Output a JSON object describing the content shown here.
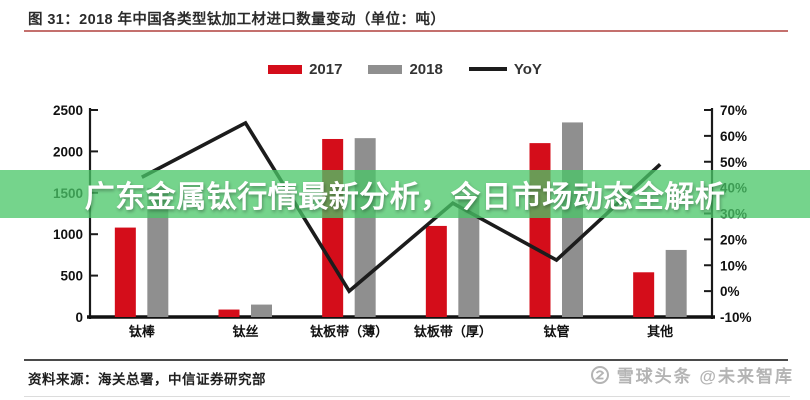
{
  "header": {
    "title": "图 31：2018 年中国各类型钛加工材进口数量变动（单位：吨）"
  },
  "legend": {
    "items": [
      {
        "label": "2017",
        "marker": "bar",
        "color": "#d40d1a"
      },
      {
        "label": "2018",
        "marker": "bar",
        "color": "#8f8f8f"
      },
      {
        "label": "YoY",
        "marker": "line",
        "color": "#1c1c1c"
      }
    ]
  },
  "banner": {
    "text": "广东金属钛行情最新分析，今日市场动态全解析",
    "bg_color": "#49c668",
    "text_color": "#ffffff"
  },
  "chart_data": {
    "type": "bar",
    "title": "2018 年中国各类型钛加工材进口数量变动",
    "unit": "吨",
    "categories": [
      "钛棒",
      "钛丝",
      "钛板带（薄）",
      "钛板带（厚）",
      "钛管",
      "其他"
    ],
    "series": [
      {
        "name": "2017",
        "type": "bar",
        "axis": "left",
        "color": "#d40d1a",
        "values": [
          1080,
          90,
          2150,
          1100,
          2100,
          540
        ]
      },
      {
        "name": "2018",
        "type": "bar",
        "axis": "left",
        "color": "#8f8f8f",
        "values": [
          1560,
          150,
          2160,
          1470,
          2350,
          810
        ]
      },
      {
        "name": "YoY",
        "type": "line",
        "axis": "right",
        "color": "#1c1c1c",
        "unit": "%",
        "values": [
          44,
          65,
          0,
          34,
          12,
          49
        ]
      }
    ],
    "left_axis": {
      "min": 0,
      "max": 2500,
      "step": 500,
      "tick_labels": [
        "0",
        "500",
        "1000",
        "1500",
        "2000",
        "2500"
      ]
    },
    "right_axis": {
      "min": -10,
      "max": 70,
      "step": 10,
      "tick_labels": [
        "-10%",
        "0%",
        "10%",
        "20%",
        "30%",
        "40%",
        "50%",
        "60%",
        "70%"
      ]
    },
    "grid": false,
    "legend_position": "top"
  },
  "footer": {
    "source": "资料来源：海关总署，中信证券研究部",
    "watermark": "雪球头条 @未来智库"
  },
  "colors": {
    "bar_red": "#d40d1a",
    "bar_gray": "#8f8f8f",
    "line_black": "#1c1c1c",
    "banner_green": "#49c668",
    "title_rule_red": "#c4706d"
  }
}
